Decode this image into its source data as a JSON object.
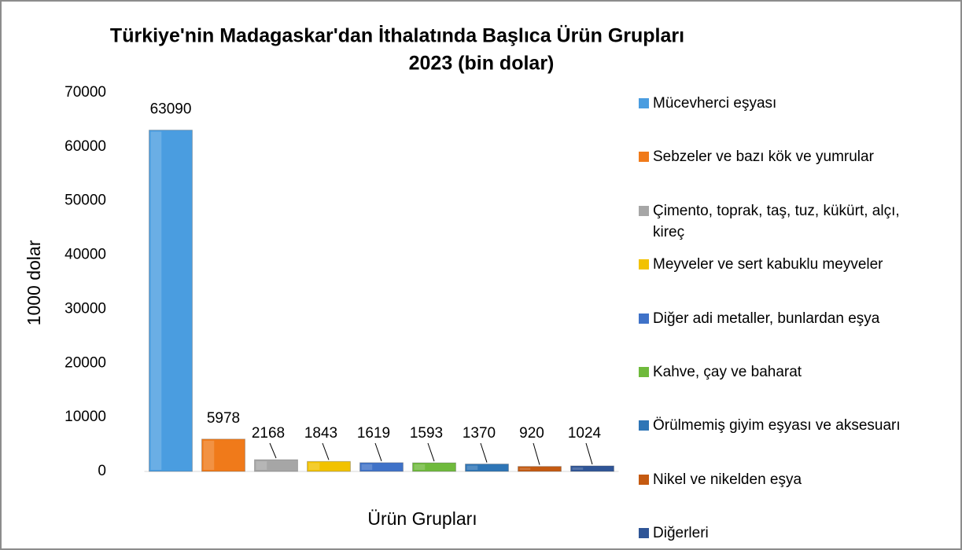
{
  "chart_data": {
    "type": "bar",
    "title": "Türkiye'nin Madagaskar'dan İthalatında Başlıca Ürün Grupları",
    "subtitle": "2023 (bin dolar)",
    "x_label": "Ürün Grupları",
    "y_label": "1000 dolar",
    "categories": [
      "Mücevherci eşyası",
      "Sebzeler ve bazı kök ve yumrular",
      "Çimento, toprak, taş, tuz, kükürt, alçı, kireç",
      "Meyveler ve sert kabuklu meyveler",
      "Diğer adi metaller, bunlardan eşya",
      "Kahve, çay ve baharat",
      "Örülmemiş giyim eşyası ve aksesuarı",
      "Nikel ve nikelden eşya",
      "Diğerleri"
    ],
    "values": [
      63090,
      5978,
      2168,
      1843,
      1619,
      1593,
      1370,
      920,
      1024
    ],
    "colors": [
      "#4a9de0",
      "#f07a1a",
      "#a6a6a6",
      "#f2c200",
      "#3f72c8",
      "#6fba3c",
      "#2e75b6",
      "#c55a11",
      "#2f5597"
    ],
    "ylim": [
      0,
      70000
    ],
    "yticks": [
      0,
      10000,
      20000,
      30000,
      40000,
      50000,
      60000,
      70000
    ],
    "legend": "right"
  }
}
